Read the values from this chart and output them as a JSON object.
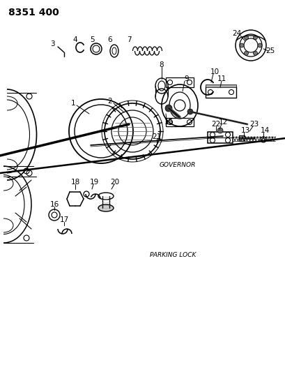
{
  "title": "8351 400",
  "governor_label": "GOVERNOR",
  "parking_label": "PARKING LOCK",
  "bg_color": "#ffffff",
  "line_color": "#000000",
  "title_fontsize": 10,
  "label_fontsize": 6.5,
  "number_fontsize": 7.5
}
